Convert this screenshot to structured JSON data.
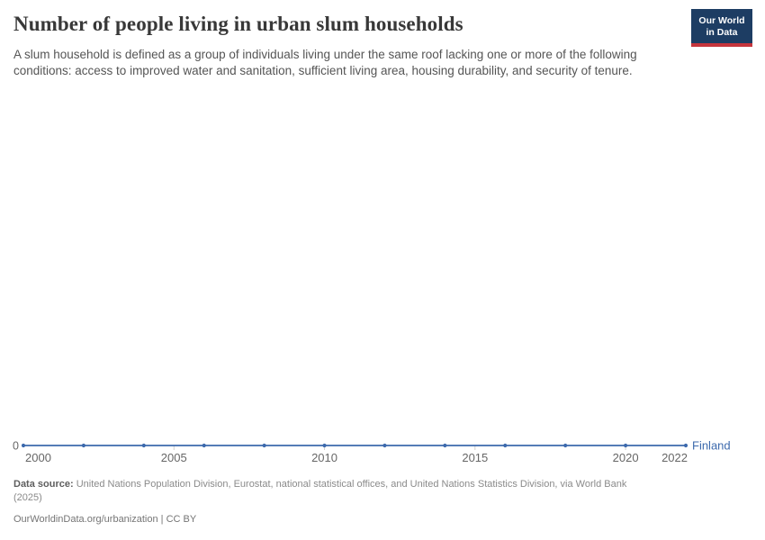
{
  "header": {
    "title": "Number of people living in urban slum households",
    "subtitle": "A slum household is defined as a group of individuals living under the same roof lacking one or more of the following conditions: access to improved water and sanitation, sufficient living area, housing durability, and security of tenure.",
    "logo": {
      "line1": "Our World",
      "line2": "in Data",
      "bg_color": "#1d3d63",
      "stripe_color": "#c5353c"
    }
  },
  "chart_data": {
    "type": "line",
    "title": "Number of people living in urban slum households",
    "x": [
      2000,
      2002,
      2004,
      2006,
      2008,
      2010,
      2012,
      2014,
      2016,
      2018,
      2020,
      2022
    ],
    "series": [
      {
        "name": "Finland",
        "color": "#3d6aad",
        "values": [
          0,
          0,
          0,
          0,
          0,
          0,
          0,
          0,
          0,
          0,
          0,
          0
        ]
      }
    ],
    "xlim": [
      2000,
      2022
    ],
    "ylim": [
      0,
      0
    ],
    "x_tick_years": [
      2000,
      2005,
      2010,
      2015,
      2020,
      2022
    ],
    "x_tick_labels": [
      "2000",
      "2005",
      "2010",
      "2015",
      "2020",
      "2022"
    ],
    "y_tick_labels": [
      "0"
    ],
    "grid": false,
    "legend": "end-of-line-label",
    "axis_text_color": "#666666",
    "tick_mark_color": "#cfcfcf"
  },
  "footer": {
    "datasource_bold": "Data source:",
    "datasource_rest": "United Nations Population Division, Eurostat, national statistical offices, and United Nations Statistics Division, via World Bank",
    "datasource_year": "(2025)",
    "attribution": "OurWorldinData.org/urbanization | CC BY"
  }
}
